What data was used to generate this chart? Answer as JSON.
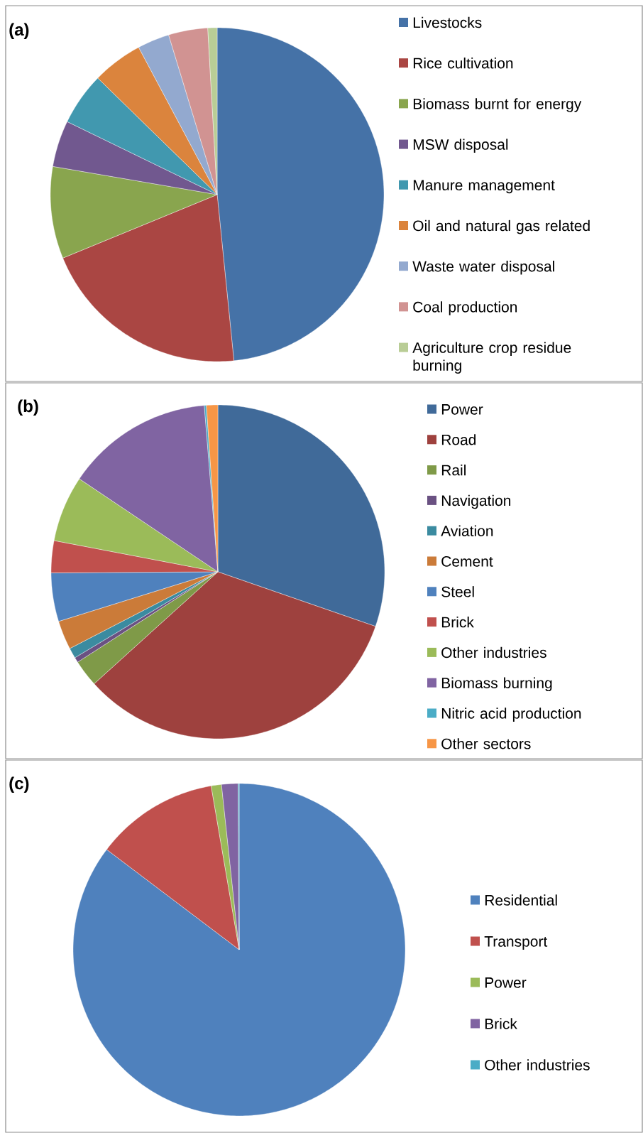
{
  "chart_data": [
    {
      "type": "pie",
      "title": "(a)",
      "legend": "right",
      "categories": [
        "Livestocks",
        "Rice cultivation",
        "Biomass burnt for energy",
        "MSW disposal",
        "Manure management",
        "Oil and natural gas related",
        "Waste water disposal",
        "Coal production",
        "Agriculture crop residue burning"
      ],
      "values": [
        48.4,
        20.4,
        8.9,
        4.5,
        5.1,
        4.9,
        3.1,
        3.8,
        0.9
      ],
      "colors": [
        "#4572a7",
        "#aa4643",
        "#89a54e",
        "#71588f",
        "#4198af",
        "#db843d",
        "#93a9cf",
        "#d19392",
        "#b9cd96"
      ]
    },
    {
      "type": "pie",
      "title": "(b)",
      "legend": "right",
      "categories": [
        "Power",
        "Road",
        "Rail",
        "Navigation",
        "Aviation",
        "Cement",
        "Steel",
        "Brick",
        "Other industries",
        "Biomass burning",
        "Nitric acid production",
        "Other sectors"
      ],
      "values": [
        30.3,
        33.0,
        2.6,
        0.5,
        1.0,
        2.8,
        4.7,
        3.1,
        6.4,
        14.3,
        0.2,
        1.1
      ],
      "colors": [
        "#406a99",
        "#9e413e",
        "#7f9a48",
        "#6a5182",
        "#3b8ba0",
        "#cb7b39",
        "#4f81bd",
        "#c0504d",
        "#9bbb59",
        "#8064a2",
        "#4bacc6",
        "#f79646"
      ]
    },
    {
      "type": "pie",
      "title": "(c)",
      "legend": "right",
      "categories": [
        "Residential",
        "Transport",
        "Power",
        "Brick",
        "Other industries"
      ],
      "values": [
        85.3,
        12.0,
        1.0,
        1.6,
        0.1
      ],
      "colors": [
        "#4f81bd",
        "#c0504d",
        "#9bbb59",
        "#8064a2",
        "#4bacc6"
      ]
    }
  ]
}
